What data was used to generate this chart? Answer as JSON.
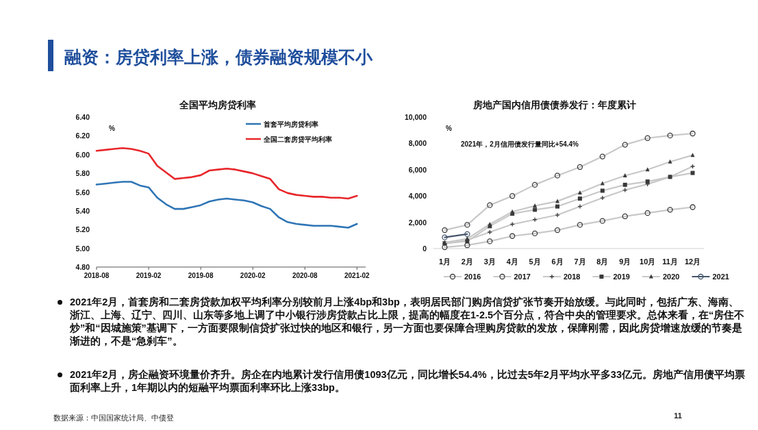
{
  "chart_data": [
    {
      "type": "line",
      "title": "全国平均房贷利率",
      "ylabel": "%",
      "x": [
        "2018-08",
        "2018-09",
        "2018-10",
        "2018-11",
        "2018-12",
        "2019-01",
        "2019-02",
        "2019-03",
        "2019-04",
        "2019-05",
        "2019-06",
        "2019-07",
        "2019-08",
        "2019-09",
        "2019-10",
        "2019-11",
        "2019-12",
        "2020-01",
        "2020-02",
        "2020-03",
        "2020-04",
        "2020-05",
        "2020-06",
        "2020-07",
        "2020-08",
        "2020-09",
        "2020-10",
        "2020-11",
        "2020-12",
        "2021-01",
        "2021-02"
      ],
      "series": [
        {
          "name": "首套平均房贷利率",
          "color": "#2e75b6",
          "values": [
            5.68,
            5.69,
            5.7,
            5.71,
            5.71,
            5.67,
            5.65,
            5.54,
            5.47,
            5.42,
            5.42,
            5.44,
            5.46,
            5.5,
            5.52,
            5.53,
            5.52,
            5.51,
            5.49,
            5.45,
            5.42,
            5.33,
            5.28,
            5.26,
            5.25,
            5.24,
            5.24,
            5.24,
            5.23,
            5.22,
            5.26
          ]
        },
        {
          "name": "全国二套房贷平均利率",
          "color": "#e8262a",
          "values": [
            6.04,
            6.05,
            6.06,
            6.07,
            6.06,
            6.04,
            6.01,
            5.88,
            5.81,
            5.74,
            5.75,
            5.76,
            5.78,
            5.83,
            5.84,
            5.85,
            5.84,
            5.82,
            5.8,
            5.77,
            5.74,
            5.63,
            5.59,
            5.57,
            5.56,
            5.55,
            5.55,
            5.54,
            5.54,
            5.53,
            5.56
          ]
        }
      ],
      "xlim": [
        "2018-08",
        "2021-03"
      ],
      "xticks": [
        "2018-08",
        "2019-02",
        "2019-08",
        "2020-02",
        "2020-08",
        "2021-02"
      ],
      "ylim": [
        4.8,
        6.4
      ],
      "yticks": [
        {
          "value": 4.8,
          "label": "4.80"
        },
        {
          "value": 5.0,
          "label": "5.00"
        },
        {
          "value": 5.2,
          "label": "5.20"
        },
        {
          "value": 5.4,
          "label": "5.40"
        },
        {
          "value": 5.6,
          "label": "5.60"
        },
        {
          "value": 5.8,
          "label": "5.80"
        },
        {
          "value": 6.0,
          "label": "6.00"
        },
        {
          "value": 6.2,
          "label": "6.20"
        },
        {
          "value": 6.4,
          "label": "6.40"
        }
      ],
      "legend": "top right"
    },
    {
      "type": "line",
      "title": "房地产国内信用债债券发行：年度累计",
      "ylabel": "%",
      "annotations": [
        "2021年，2月信用债发行量同比+54.4%"
      ],
      "categories": [
        "1月",
        "2月",
        "3月",
        "4月",
        "5月",
        "6月",
        "7月",
        "8月",
        "9月",
        "10月",
        "11月",
        "12月"
      ],
      "series": [
        {
          "name": "2016",
          "color": "#c8c8c8",
          "marker": "circle",
          "values": [
            1400,
            1800,
            3300,
            4000,
            4850,
            5550,
            6200,
            7000,
            7900,
            8400,
            8600,
            8750
          ]
        },
        {
          "name": "2017",
          "color": "#c8c8c8",
          "marker": "circle",
          "values": [
            100,
            250,
            550,
            950,
            1150,
            1400,
            1800,
            2100,
            2450,
            2700,
            2950,
            3150
          ]
        },
        {
          "name": "2018",
          "color": "#c8c8c8",
          "marker": "cross",
          "values": [
            350,
            650,
            1250,
            1850,
            2200,
            2550,
            3200,
            3850,
            4450,
            4900,
            5450,
            6250
          ]
        },
        {
          "name": "2019",
          "color": "#c8c8c8",
          "marker": "square",
          "values": [
            400,
            550,
            1700,
            2650,
            2950,
            3200,
            3800,
            4400,
            4850,
            5100,
            5450,
            5750
          ]
        },
        {
          "name": "2020",
          "color": "#c8c8c8",
          "marker": "triangle",
          "values": [
            450,
            750,
            1850,
            2800,
            3250,
            3600,
            4250,
            4950,
            5550,
            6000,
            6600,
            7100
          ]
        },
        {
          "name": "2021",
          "color": "#44546a",
          "marker": "circle",
          "values": [
            850,
            1100,
            null,
            null,
            null,
            null,
            null,
            null,
            null,
            null,
            null,
            null
          ]
        }
      ],
      "ylim": [
        0,
        10000
      ],
      "yticks": [
        0,
        {
          "value": 2000,
          "label": "2,000"
        },
        {
          "value": 4000,
          "label": "4,000"
        },
        {
          "value": 6000,
          "label": "6,000"
        },
        {
          "value": 8000,
          "label": "8,000"
        },
        {
          "value": 10000,
          "label": "10,000"
        }
      ],
      "legend": "bottom"
    },
    {
      "type": "other",
      "title": "融资：房贷利率上涨，债券融资规模不小",
      "annotations": [
        "2021年2月，首套房和二套房贷款加权平均利率分别较前月上涨4bp和3bp，表明居民部门购房信贷扩张节奏开始放缓。与此同时，包括广东、海南、浙江、上海、辽宁、四川、山东等多地上调了中小银行涉房贷款占比上限，提高的幅度在1-2.5个百分点，符合中央的管理要求。总体来看，在“房住不炒”和“因城施策”基调下，一方面要限制信贷扩张过快的地区和银行，另一方面也要保障合理购房贷款的发放，保障刚需，因此房贷增速放缓的节奏是渐进的，不是“急刹车”。",
        "2021年2月，房企融资环境量价齐升。房企在内地累计发行信用债1093亿元，同比增长54.4%，比过去5年2月平均水平多33亿元。房地产信用债平均票面利率上升，1年期以内的短融平均票面利率环比上涨33bp。",
        "数据来源：中国国家统计局、中债登",
        "11"
      ]
    }
  ]
}
